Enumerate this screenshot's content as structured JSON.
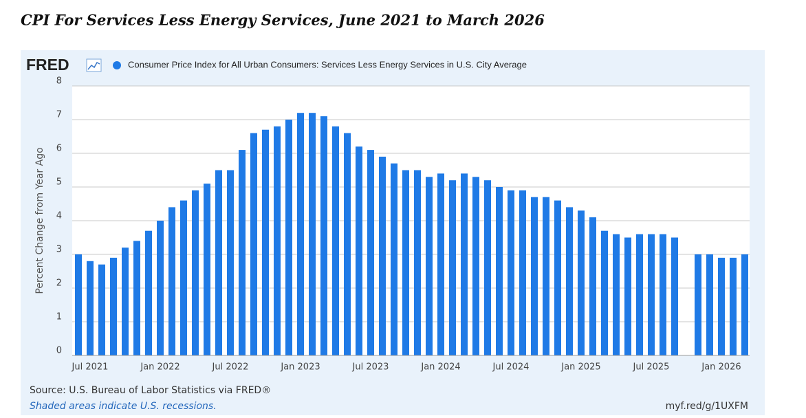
{
  "chart_data": {
    "type": "bar",
    "title": "CPI For Services Less Energy Services, June 2021 to March 2026",
    "logo": "FRED",
    "ylabel": "Percent Change from Year Ago",
    "source": "Source: U.S. Bureau of Labor Statistics via FRED®",
    "note": "Shaded areas indicate U.S. recessions.",
    "url": "myf.red/g/1UXFM",
    "categories": [
      null,
      "Jul 2021",
      null,
      null,
      null,
      null,
      null,
      "Jan 2022",
      null,
      null,
      null,
      null,
      null,
      "Jul 2022",
      null,
      null,
      null,
      null,
      null,
      "Jan 2023",
      null,
      null,
      null,
      null,
      null,
      "Jul 2023",
      null,
      null,
      null,
      null,
      null,
      "Jan 2024",
      null,
      null,
      null,
      null,
      null,
      "Jul 2024",
      null,
      null,
      null,
      null,
      null,
      "Jan 2025",
      null,
      null,
      null,
      null,
      null,
      "Jul 2025",
      null,
      null,
      null,
      null,
      null,
      "Jan 2026",
      null,
      null
    ],
    "series": [
      {
        "name": "Consumer Price Index for All Urban Consumers: Services Less Energy Services in U.S. City Average",
        "color": "#1f7ae6",
        "values": [
          3.0,
          2.8,
          2.7,
          2.9,
          3.2,
          3.4,
          3.7,
          4.0,
          4.4,
          4.6,
          4.9,
          5.1,
          5.5,
          5.5,
          6.1,
          6.6,
          6.7,
          6.8,
          7.0,
          7.2,
          7.2,
          7.1,
          6.8,
          6.6,
          6.2,
          6.1,
          5.9,
          5.7,
          5.5,
          5.5,
          5.3,
          5.4,
          5.2,
          5.4,
          5.3,
          5.2,
          5.0,
          4.9,
          4.9,
          4.7,
          4.7,
          4.6,
          4.4,
          4.3,
          4.1,
          3.7,
          3.6,
          3.5,
          3.6,
          3.6,
          3.6,
          3.5,
          null,
          3.0,
          3.0,
          2.9,
          2.9,
          3.0
        ]
      }
    ],
    "ylim": [
      0,
      8
    ],
    "yticks": [
      0,
      1,
      2,
      3,
      4,
      5,
      6,
      7,
      8
    ],
    "grid": true
  }
}
